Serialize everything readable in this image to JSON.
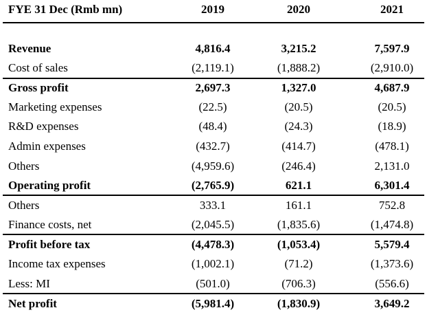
{
  "table": {
    "header": {
      "label": "FYE 31 Dec (Rmb mn)",
      "years": [
        "2019",
        "2020",
        "2021"
      ]
    },
    "rows": [
      {
        "label": "Revenue",
        "values": [
          "4,816.4",
          "3,215.2",
          "7,597.9"
        ],
        "bold": true
      },
      {
        "label": "Cost of sales",
        "values": [
          "(2,119.1)",
          "(1,888.2)",
          "(2,910.0)"
        ],
        "bold": false
      },
      {
        "label": "Gross profit",
        "values": [
          "2,697.3",
          "1,327.0",
          "4,687.9"
        ],
        "bold": true
      },
      {
        "label": "Marketing expenses",
        "values": [
          "(22.5)",
          "(20.5)",
          "(20.5)"
        ],
        "bold": false
      },
      {
        "label": "R&D expenses",
        "values": [
          "(48.4)",
          "(24.3)",
          "(18.9)"
        ],
        "bold": false
      },
      {
        "label": "Admin expenses",
        "values": [
          "(432.7)",
          "(414.7)",
          "(478.1)"
        ],
        "bold": false
      },
      {
        "label": "Others",
        "values": [
          "(4,959.6)",
          "(246.4)",
          "2,131.0"
        ],
        "bold": false
      },
      {
        "label": "Operating profit",
        "values": [
          "(2,765.9)",
          "621.1",
          "6,301.4"
        ],
        "bold": true
      },
      {
        "label": "Others",
        "values": [
          "333.1",
          "161.1",
          "752.8"
        ],
        "bold": false
      },
      {
        "label": "Finance costs, net",
        "values": [
          "(2,045.5)",
          "(1,835.6)",
          "(1,474.8)"
        ],
        "bold": false
      },
      {
        "label": "Profit before tax",
        "values": [
          "(4,478.3)",
          "(1,053.4)",
          "5,579.4"
        ],
        "bold": true
      },
      {
        "label": "Income tax expenses",
        "values": [
          "(1,002.1)",
          "(71.2)",
          "(1,373.6)"
        ],
        "bold": false
      },
      {
        "label": "Less: MI",
        "values": [
          "(501.0)",
          "(706.3)",
          "(556.6)"
        ],
        "bold": false
      },
      {
        "label": "Net profit",
        "values": [
          "(5,981.4)",
          "(1,830.9)",
          "3,649.2"
        ],
        "bold": true
      }
    ]
  }
}
